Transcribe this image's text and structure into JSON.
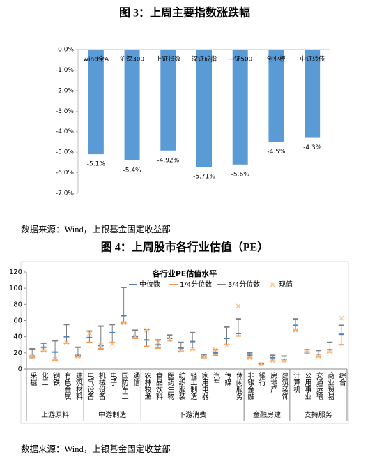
{
  "chart_data": [
    {
      "type": "bar",
      "title": "图 3：上周主要指数涨跌幅",
      "source": "数据来源：Wind，上银基金固定收益部",
      "categories": [
        "wind全A",
        "沪深300",
        "上证指数",
        "深证成指",
        "中证500",
        "创业板",
        "中证转债"
      ],
      "values": [
        -5.1,
        -5.4,
        -4.92,
        -5.71,
        -5.6,
        -4.5,
        -4.3
      ],
      "value_labels": [
        "-5.1%",
        "-5.4%",
        "-4.92%",
        "-5.71%",
        "-5.6%",
        "-4.5%",
        "-4.3%"
      ],
      "color": "#5b9bd5",
      "ylim": [
        -7,
        0
      ],
      "yticks": [
        {
          "value": 0,
          "label": "0.0%"
        },
        {
          "value": -1,
          "label": "-1.0%"
        },
        {
          "value": -2,
          "label": "-2.0%"
        },
        {
          "value": -3,
          "label": "-3.0%"
        },
        {
          "value": -4,
          "label": "-4.0%"
        },
        {
          "value": -5,
          "label": "-5.0%"
        },
        {
          "value": -6,
          "label": "-6.0%"
        },
        {
          "value": -7,
          "label": "-7.0%"
        }
      ]
    },
    {
      "type": "box",
      "title": "图 4：上周股市各行业估值（PE）",
      "subtitle": "各行业PE估值水平",
      "source": "数据来源：Wind，上银基金固定收益部",
      "groups": [
        {
          "name": "上游原料",
          "categories": [
            "采掘",
            "化工",
            "钢铁",
            "有色金属",
            "建筑材料"
          ]
        },
        {
          "name": "中游制造",
          "categories": [
            "电气设备",
            "机械设备",
            "电子",
            "国防军工",
            "通信"
          ]
        },
        {
          "name": "下游消费",
          "categories": [
            "农林牧渔",
            "食品饮料",
            "医药生物",
            "纺织服装",
            "轻工制造",
            "家用电器",
            "汽车",
            "传媒",
            "休闲服务"
          ]
        },
        {
          "name": "金融房建",
          "categories": [
            "非银金融",
            "银行",
            "房地产",
            "建筑装饰"
          ]
        },
        {
          "name": "支持服务",
          "categories": [
            "计算机",
            "公用事业",
            "交通运输",
            "商业贸易",
            "综合"
          ]
        }
      ],
      "series": [
        {
          "name": "中位数",
          "color": "#4f81bd",
          "values": [
            16,
            27,
            21,
            40,
            17,
            39,
            29,
            45,
            66,
            40,
            36,
            30,
            38,
            26,
            34,
            16,
            20,
            38,
            44,
            17,
            7,
            14,
            12,
            54,
            21,
            18,
            24,
            43
          ]
        },
        {
          "name": "1/4分位数",
          "color": "#f79646",
          "values": [
            14,
            22,
            11,
            32,
            15,
            33,
            25,
            33,
            57,
            38,
            28,
            26,
            35,
            22,
            24,
            14,
            17,
            30,
            41,
            14,
            6,
            10,
            10,
            48,
            19,
            15,
            21,
            30
          ]
        },
        {
          "name": "3/4分位数",
          "color": "#7f7f7f",
          "values": [
            25,
            32,
            35,
            55,
            27,
            47,
            53,
            55,
            101,
            48,
            49,
            36,
            42,
            33,
            45,
            18,
            24,
            52,
            62,
            20,
            7,
            17,
            16,
            62,
            24,
            23,
            33,
            54
          ]
        },
        {
          "name": "现值",
          "color": "#f9c08a",
          "values": [
            16,
            23,
            12,
            33,
            15,
            44,
            29,
            31,
            57,
            40,
            48,
            33,
            37,
            23,
            25,
            15,
            24,
            29,
            78,
            14,
            6,
            10,
            10,
            48,
            22,
            16,
            22,
            63
          ]
        }
      ],
      "ylim": [
        0,
        120
      ],
      "yticks": [
        0,
        20,
        40,
        60,
        80,
        100,
        120
      ]
    }
  ]
}
